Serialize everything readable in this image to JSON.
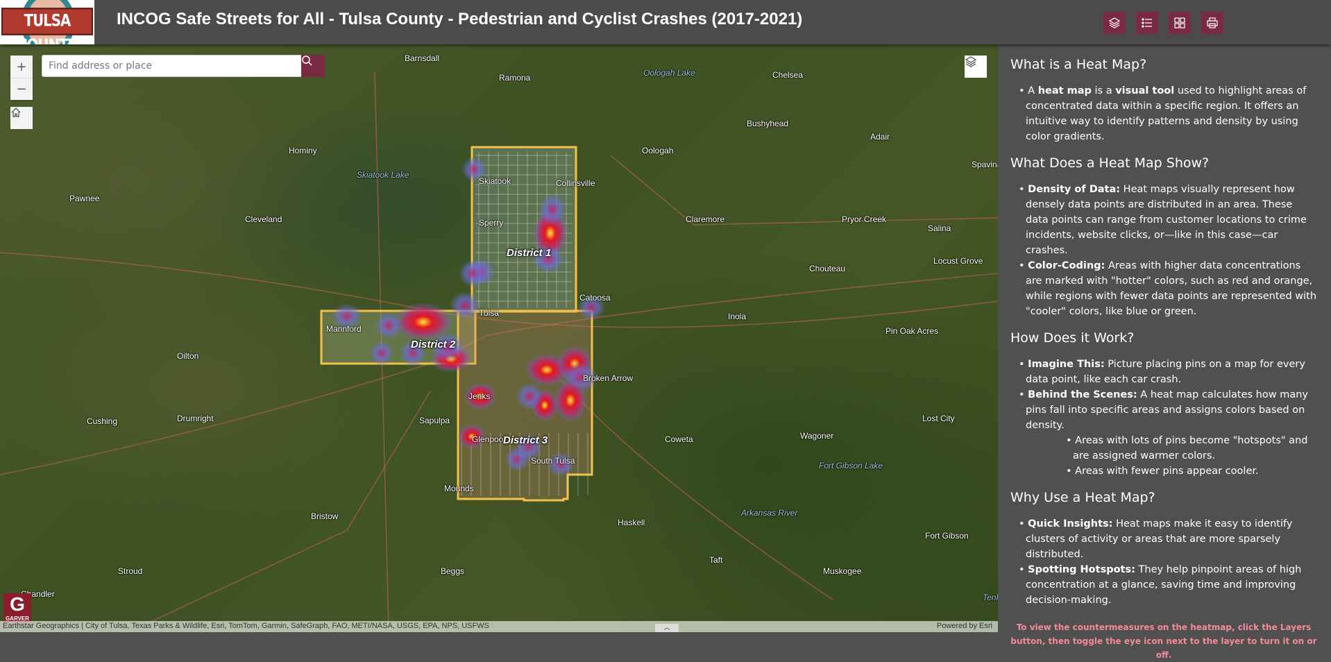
{
  "header": {
    "logo_text": "TULSA COUNTY",
    "title": "INCOG Safe Streets for All - Tulsa County - Pedestrian and Cyclist Crashes (2017-2021)",
    "buttons": [
      {
        "icon": "layers-icon",
        "label": "Layers"
      },
      {
        "icon": "legend-list-icon",
        "label": "Legend"
      },
      {
        "icon": "basemap-gallery-icon",
        "label": "Basemap Gallery"
      },
      {
        "icon": "print-icon",
        "label": "Print"
      }
    ]
  },
  "map": {
    "search": {
      "placeholder": "Find address or place",
      "value": ""
    },
    "zoom_in": "+",
    "zoom_out": "−",
    "places": [
      {
        "name": "Barnsdall"
      },
      {
        "name": "Ramona"
      },
      {
        "name": "Oologah Lake",
        "water": true
      },
      {
        "name": "Chelsea"
      },
      {
        "name": "Oologah"
      },
      {
        "name": "Bushyhead"
      },
      {
        "name": "Adair"
      },
      {
        "name": "Hominy"
      },
      {
        "name": "Skiatook Lake",
        "water": true
      },
      {
        "name": "Skiatook"
      },
      {
        "name": "Collinsville"
      },
      {
        "name": "Spavinaw"
      },
      {
        "name": "Pawnee"
      },
      {
        "name": "Cleveland"
      },
      {
        "name": "Claremore"
      },
      {
        "name": "Pryor Creek"
      },
      {
        "name": "Salina"
      },
      {
        "name": "Sperry"
      },
      {
        "name": "Catoosa"
      },
      {
        "name": "Chouteau"
      },
      {
        "name": "Locust Grove"
      },
      {
        "name": "Tulsa"
      },
      {
        "name": "Inola"
      },
      {
        "name": "Pin Oak Acres"
      },
      {
        "name": "Mannford"
      },
      {
        "name": "Oilton"
      },
      {
        "name": "Broken Arrow"
      },
      {
        "name": "Jenks"
      },
      {
        "name": "Sapulpa"
      },
      {
        "name": "Cushing"
      },
      {
        "name": "Drumright"
      },
      {
        "name": "Lost City"
      },
      {
        "name": "Wagoner"
      },
      {
        "name": "Coweta"
      },
      {
        "name": "Glenpool"
      },
      {
        "name": "Fort Gibson Lake",
        "water": true
      },
      {
        "name": "South Tulsa"
      },
      {
        "name": "Mounds"
      },
      {
        "name": "Bristow"
      },
      {
        "name": "Haskell"
      },
      {
        "name": "Arkansas River",
        "water": true
      },
      {
        "name": "Fort Gibson"
      },
      {
        "name": "Beggs"
      },
      {
        "name": "Taft"
      },
      {
        "name": "Muskogee"
      },
      {
        "name": "Stroud"
      },
      {
        "name": "Chandler"
      },
      {
        "name": "Tenkiller Ferry Lake",
        "water": true
      }
    ],
    "districts": [
      "District 1",
      "District 2",
      "District 3"
    ],
    "district_outline_color": "#f2c14e",
    "heat_colors": [
      "#6a6fd6",
      "#c0266d",
      "#e8121f",
      "#ffe433"
    ],
    "garver_logo": {
      "letter": "G",
      "text": "GARVER"
    },
    "attribution": "Earthstar Geographics | City of Tulsa, Texas Parks & Wildlife, Esri, TomTom, Garmin, SafeGraph, FAO, METI/NASA, USGS, EPA, NPS, USFWS",
    "powered_by": "Powered by Esri"
  },
  "panel": {
    "s1": {
      "title": "What is a Heat Map?",
      "p1a": "A ",
      "p1b": "heat map",
      "p1c": " is a ",
      "p1d": "visual tool",
      "p1e": " used to highlight areas of concentrated data within a specific region. It offers an intuitive way to identify patterns and density by using color gradients."
    },
    "s2": {
      "title": "What Does a Heat Map Show?",
      "items": [
        {
          "b": "Density of Data:",
          "t": " Heat maps visually represent how densely data points are distributed in an area. These data points can range from customer locations to crime incidents, website clicks, or—like in this case—car crashes."
        },
        {
          "b": "Color-Coding:",
          "t": " Areas with higher data concentrations are marked with \"hotter\" colors, such as red and orange, while regions with fewer data points are represented with \"cooler\" colors, like blue or green."
        }
      ]
    },
    "s3": {
      "title": "How Does it Work?",
      "items": [
        {
          "b": "Imagine This:",
          "t": " Picture placing pins on a map for every data point, like each car crash."
        },
        {
          "b": "Behind the Scenes:",
          "t": " A heat map calculates how many pins fall into specific areas and assigns colors based on density."
        }
      ],
      "sub": [
        "Areas with lots of pins become \"hotspots\" and are assigned warmer colors.",
        "Areas with fewer pins appear cooler."
      ]
    },
    "s4": {
      "title": "Why Use a Heat Map?",
      "items": [
        {
          "b": "Quick Insights:",
          "t": " Heat maps make it easy to identify clusters of activity or areas that are more sparsely distributed."
        },
        {
          "b": "Spotting Hotspots:",
          "t": " They help pinpoint areas of high concentration at a glance, saving time and improving decision-making."
        }
      ]
    },
    "note": "To view the countermeasures on the heatmap, click the Layers button, then toggle the eye icon next to the layer to turn it on or off."
  }
}
